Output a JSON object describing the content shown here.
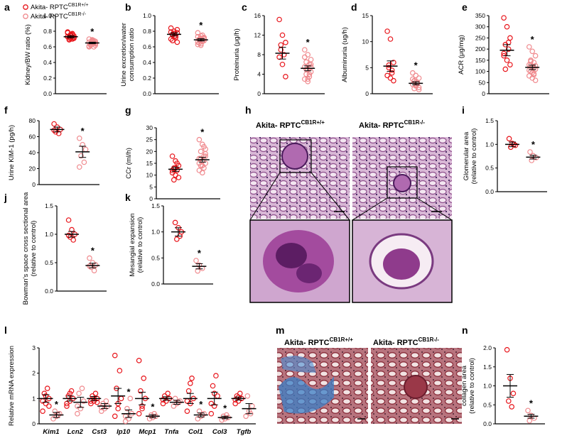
{
  "legend": {
    "items": [
      {
        "name": "Akita- RPTC",
        "sup": "CB1R+/+",
        "color": "#e8151b"
      },
      {
        "name": "Akita- RPTC",
        "sup": "CB1R-/-",
        "color": "#f08a8e"
      }
    ]
  },
  "colors": {
    "wt": "#e8151b",
    "ko": "#f08a8e",
    "axis": "#000000"
  },
  "images": {
    "h": {
      "left_title": "Akita- RPTC",
      "left_sup": "CB1R+/+",
      "right_title": "Akita- RPTC",
      "right_sup": "CB1R-/-",
      "stain": "PAS"
    },
    "m": {
      "left_title": "Akita- RPTC",
      "left_sup": "CB1R+/+",
      "right_title": "Akita- RPTC",
      "right_sup": "CB1R-/-",
      "stain": "Masson trichrome"
    }
  },
  "chart_data": [
    {
      "id": "a",
      "type": "scatter",
      "ylabel": "Kidney/BW ratio (%)",
      "ylim": [
        0,
        1.0
      ],
      "yticks": [
        "0.0",
        "0.2",
        "0.4",
        "0.6",
        "0.8",
        "1.0"
      ],
      "groups": [
        {
          "mean": 0.73,
          "sem": 0.015,
          "points": [
            0.78,
            0.76,
            0.74,
            0.72,
            0.7,
            0.73,
            0.75,
            0.71,
            0.69,
            0.77,
            0.73,
            0.74,
            0.72,
            0.7,
            0.76,
            0.79,
            0.71,
            0.72
          ]
        },
        {
          "mean": 0.65,
          "sem": 0.01,
          "points": [
            0.7,
            0.67,
            0.65,
            0.63,
            0.6,
            0.66,
            0.68,
            0.62,
            0.64,
            0.66,
            0.61,
            0.69,
            0.67,
            0.63,
            0.65,
            0.6,
            0.66,
            0.64,
            0.62,
            0.68
          ]
        }
      ],
      "sig": "*"
    },
    {
      "id": "b",
      "type": "scatter",
      "ylabel": "Urine excretion/water consumption ratio",
      "ylim": [
        0,
        1.0
      ],
      "yticks": [
        "0.0",
        "0.2",
        "0.4",
        "0.6",
        "0.8",
        "1.0"
      ],
      "groups": [
        {
          "mean": 0.76,
          "sem": 0.02,
          "points": [
            0.84,
            0.8,
            0.78,
            0.75,
            0.72,
            0.7,
            0.77,
            0.82,
            0.68,
            0.74,
            0.79,
            0.73,
            0.66,
            0.76
          ]
        },
        {
          "mean": 0.69,
          "sem": 0.015,
          "points": [
            0.78,
            0.74,
            0.72,
            0.7,
            0.68,
            0.66,
            0.64,
            0.71,
            0.69,
            0.67,
            0.73,
            0.62,
            0.7,
            0.65,
            0.75,
            0.63,
            0.71,
            0.68
          ]
        }
      ],
      "sig": "*"
    },
    {
      "id": "c",
      "type": "scatter",
      "ylabel": "Proteinuria (μg/h)",
      "ylim": [
        0,
        16
      ],
      "yticks": [
        "0",
        "4",
        "8",
        "12",
        "16"
      ],
      "groups": [
        {
          "mean": 8.3,
          "sem": 1.2,
          "points": [
            15.2,
            12.0,
            10.5,
            9.0,
            8.0,
            7.5,
            6.0,
            3.5,
            10.0
          ]
        },
        {
          "mean": 5.2,
          "sem": 0.5,
          "points": [
            9.0,
            8.0,
            7.0,
            6.5,
            6.0,
            5.5,
            5.0,
            4.5,
            4.0,
            3.5,
            3.0,
            2.5,
            6.0,
            5.0,
            4.0,
            7.5,
            3.0,
            5.5
          ]
        }
      ],
      "sig": "*"
    },
    {
      "id": "d",
      "type": "scatter",
      "ylabel": "Albuminuria (ug/h)",
      "ylim": [
        0,
        15
      ],
      "yticks": [
        "0",
        "5",
        "10",
        "15"
      ],
      "groups": [
        {
          "mean": 5.3,
          "sem": 1.0,
          "points": [
            12.0,
            10.5,
            6.0,
            5.0,
            4.5,
            3.5,
            3.0,
            2.5,
            5.5,
            4.0
          ]
        },
        {
          "mean": 2.0,
          "sem": 0.3,
          "points": [
            4.0,
            3.5,
            3.0,
            2.5,
            2.0,
            1.8,
            1.5,
            1.2,
            1.0,
            2.2,
            2.8,
            1.6,
            0.8,
            2.4,
            1.9
          ]
        }
      ],
      "sig": "*"
    },
    {
      "id": "e",
      "type": "scatter",
      "ylabel": "ACR (μg/mg)",
      "ylim": [
        0,
        350
      ],
      "yticks": [
        "0",
        "50",
        "100",
        "150",
        "200",
        "250",
        "300",
        "350"
      ],
      "groups": [
        {
          "mean": 195,
          "sem": 25,
          "points": [
            340,
            300,
            250,
            220,
            200,
            180,
            150,
            130,
            110,
            230,
            170
          ]
        },
        {
          "mean": 118,
          "sem": 10,
          "points": [
            210,
            190,
            170,
            150,
            140,
            130,
            120,
            110,
            100,
            90,
            80,
            70,
            60,
            130,
            115,
            105,
            95,
            125,
            145,
            85
          ]
        }
      ],
      "sig": "*"
    },
    {
      "id": "f",
      "type": "scatter",
      "ylabel": "Urine KIM-1 (pg/h)",
      "ylim": [
        0,
        80
      ],
      "yticks": [
        "0",
        "20",
        "40",
        "60",
        "80"
      ],
      "groups": [
        {
          "mean": 69,
          "sem": 3,
          "points": [
            76,
            72,
            69,
            66,
            64,
            68
          ]
        },
        {
          "mean": 41,
          "sem": 7,
          "points": [
            58,
            50,
            44,
            36,
            28,
            22
          ]
        }
      ],
      "sig": "*"
    },
    {
      "id": "g",
      "type": "scatter",
      "ylabel": "CCr (ml/h)",
      "ylim": [
        0,
        30
      ],
      "yticks": [
        "0",
        "5",
        "10",
        "15",
        "20",
        "25",
        "30"
      ],
      "groups": [
        {
          "mean": 12.5,
          "sem": 0.9,
          "points": [
            18,
            16,
            14,
            13,
            12,
            11,
            10,
            9,
            8,
            15,
            12,
            13
          ]
        },
        {
          "mean": 16.5,
          "sem": 1.0,
          "points": [
            25,
            23,
            21,
            20,
            18,
            17,
            16,
            15,
            14,
            13,
            12,
            11,
            19,
            17,
            22,
            15,
            14,
            18
          ]
        }
      ],
      "sig": "*"
    },
    {
      "id": "i",
      "type": "scatter",
      "ylabel": "Glomerular area (relative to control)",
      "ylim": [
        0,
        1.5
      ],
      "yticks": [
        "0.0",
        "0.5",
        "1.0",
        "1.5"
      ],
      "groups": [
        {
          "mean": 1.0,
          "sem": 0.05,
          "points": [
            1.12,
            1.02,
            0.98,
            0.94,
            1.0
          ]
        },
        {
          "mean": 0.73,
          "sem": 0.04,
          "points": [
            0.84,
            0.76,
            0.72,
            0.66
          ]
        }
      ],
      "sig": "*"
    },
    {
      "id": "j",
      "type": "scatter",
      "ylabel": "Bowman's space cross sectional area (relative to control)",
      "ylim": [
        0,
        1.5
      ],
      "yticks": [
        "0.0",
        "0.5",
        "1.0",
        "1.5"
      ],
      "groups": [
        {
          "mean": 1.0,
          "sem": 0.05,
          "points": [
            1.25,
            1.08,
            1.0,
            0.95,
            0.9,
            0.98
          ]
        },
        {
          "mean": 0.45,
          "sem": 0.04,
          "points": [
            0.58,
            0.5,
            0.46,
            0.42,
            0.36,
            0.44
          ]
        }
      ],
      "sig": "*"
    },
    {
      "id": "k",
      "type": "scatter",
      "ylabel": "Mesangial expansion (relative to control)",
      "ylim": [
        0,
        1.5
      ],
      "yticks": [
        "0.0",
        "0.5",
        "1.0",
        "1.5"
      ],
      "groups": [
        {
          "mean": 1.0,
          "sem": 0.08,
          "points": [
            1.18,
            1.08,
            1.0,
            0.86,
            0.92
          ]
        },
        {
          "mean": 0.34,
          "sem": 0.05,
          "points": [
            0.45,
            0.36,
            0.3,
            0.25
          ]
        }
      ],
      "sig": "*"
    },
    {
      "id": "l",
      "type": "scatter",
      "ylabel": "Relative mRNA expression",
      "ylim": [
        0,
        3
      ],
      "yticks": [
        "0",
        "1",
        "2",
        "3"
      ],
      "categories": [
        "Kim1",
        "Lcn2",
        "Cst3",
        "Ip10",
        "Mcp1",
        "Tnfa",
        "Col1",
        "Col3",
        "Tgfb"
      ],
      "sig_idx": [
        0,
        3,
        4,
        6,
        7
      ],
      "series": [
        {
          "name": "Akita- RPTC CB1R+/+",
          "means": [
            1.0,
            1.0,
            1.0,
            1.1,
            1.0,
            1.0,
            1.0,
            1.0,
            1.0
          ],
          "sems": [
            0.15,
            0.1,
            0.08,
            0.3,
            0.25,
            0.07,
            0.2,
            0.25,
            0.06
          ],
          "points": [
            [
              0.5,
              0.8,
              1.0,
              1.2,
              1.4,
              0.9,
              1.1,
              0.7
            ],
            [
              0.7,
              0.9,
              1.0,
              1.1,
              1.3,
              0.8,
              1.2
            ],
            [
              0.8,
              0.9,
              1.0,
              1.1,
              1.2,
              0.9,
              1.0,
              0.85
            ],
            [
              0.3,
              0.6,
              1.0,
              1.4,
              2.1,
              2.7,
              0.8
            ],
            [
              0.4,
              0.7,
              1.0,
              1.3,
              1.8,
              2.5,
              0.6
            ],
            [
              0.8,
              0.9,
              1.0,
              1.1,
              1.2,
              0.95
            ],
            [
              0.5,
              0.8,
              1.0,
              1.3,
              1.8,
              0.9,
              1.6
            ],
            [
              0.4,
              0.7,
              1.1,
              1.5,
              1.9,
              0.8,
              1.2
            ],
            [
              0.8,
              0.9,
              1.0,
              1.1,
              1.2,
              0.95,
              1.05
            ]
          ]
        },
        {
          "name": "Akita- RPTC CB1R-/-",
          "means": [
            0.35,
            0.85,
            0.7,
            0.4,
            0.3,
            0.85,
            0.35,
            0.25,
            0.6
          ],
          "sems": [
            0.1,
            0.2,
            0.1,
            0.15,
            0.06,
            0.08,
            0.08,
            0.05,
            0.2
          ],
          "points": [
            [
              0.2,
              0.3,
              0.4,
              0.5,
              0.35
            ],
            [
              0.4,
              0.6,
              0.9,
              1.2,
              1.4,
              0.7
            ],
            [
              0.5,
              0.6,
              0.7,
              0.8,
              0.9,
              0.65
            ],
            [
              0.1,
              0.2,
              0.4,
              0.6,
              1.0,
              0.3
            ],
            [
              0.2,
              0.25,
              0.3,
              0.35,
              0.4
            ],
            [
              0.7,
              0.8,
              0.9,
              1.0,
              0.85
            ],
            [
              0.2,
              0.3,
              0.4,
              0.5,
              0.35
            ],
            [
              0.15,
              0.2,
              0.25,
              0.3,
              0.35
            ],
            [
              0.3,
              0.5,
              0.7,
              1.1,
              0.4
            ]
          ]
        }
      ]
    },
    {
      "id": "n",
      "type": "scatter",
      "ylabel": "collagen area (relative to control)",
      "ylim": [
        0,
        2.0
      ],
      "yticks": [
        "0.0",
        "0.5",
        "1.0",
        "1.5",
        "2.0"
      ],
      "groups": [
        {
          "mean": 1.0,
          "sem": 0.3,
          "points": [
            1.95,
            1.2,
            0.8,
            0.6,
            0.45
          ]
        },
        {
          "mean": 0.2,
          "sem": 0.05,
          "points": [
            0.35,
            0.22,
            0.15,
            0.08
          ]
        }
      ],
      "sig": "*"
    }
  ]
}
